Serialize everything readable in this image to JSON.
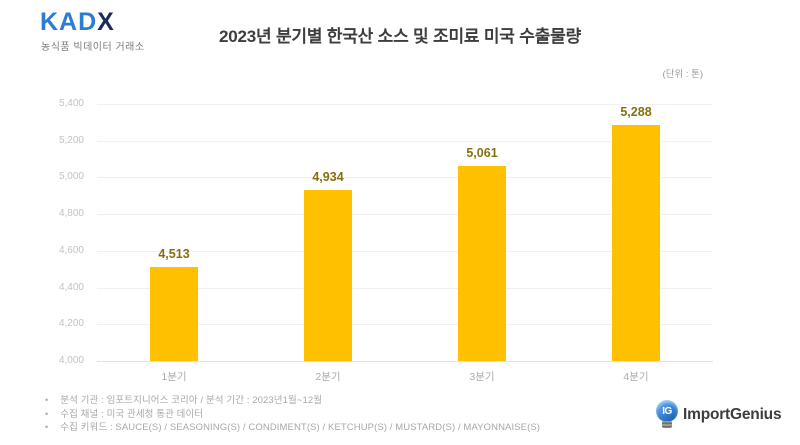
{
  "header": {
    "logo": {
      "part1": "KAD",
      "part2": "X",
      "tagline": "농식품 빅데이터 거래소"
    },
    "title": "2023년 분기별 한국산 소스 및 조미료 미국 수출물량",
    "unit_label": "(단위 : 톤)"
  },
  "chart_data": {
    "type": "bar",
    "title": "2023년 분기별 한국산 소스 및 조미료 미국 수출물량",
    "unit": "(단위 : 톤)",
    "categories": [
      "1분기",
      "2분기",
      "3분기",
      "4분기"
    ],
    "values": [
      4513,
      4934,
      5061,
      5288
    ],
    "data_labels": [
      "4,513",
      "4,934",
      "5,061",
      "5,288"
    ],
    "xlabel": "",
    "ylabel": "",
    "ylim": [
      4000,
      5400
    ],
    "ytick_step": 200,
    "yticks_top_to_bottom": [
      "5,400",
      "5,200",
      "5,000",
      "4,800",
      "4,600",
      "4,400",
      "4,200",
      "4,000"
    ],
    "grid": true,
    "legend": false,
    "bar_color": "#FFC000",
    "value_label_color": "#86700e"
  },
  "footer": {
    "bullets": [
      "분석 기관 : 임포트지니어스 코리아 / 분석 기간 : 2023년1월~12월",
      "수집 채널 : 미국 관세청 통관 데이터",
      "수집 키워드 : SAUCE(S) / SEASONING(S) / CONDIMENT(S) / KETCHUP(S) / MUSTARD(S) / MAYONNAISE(S)"
    ],
    "logo": {
      "icon_text": "IG",
      "name_part1": "Import",
      "name_part2": "Genius"
    }
  }
}
